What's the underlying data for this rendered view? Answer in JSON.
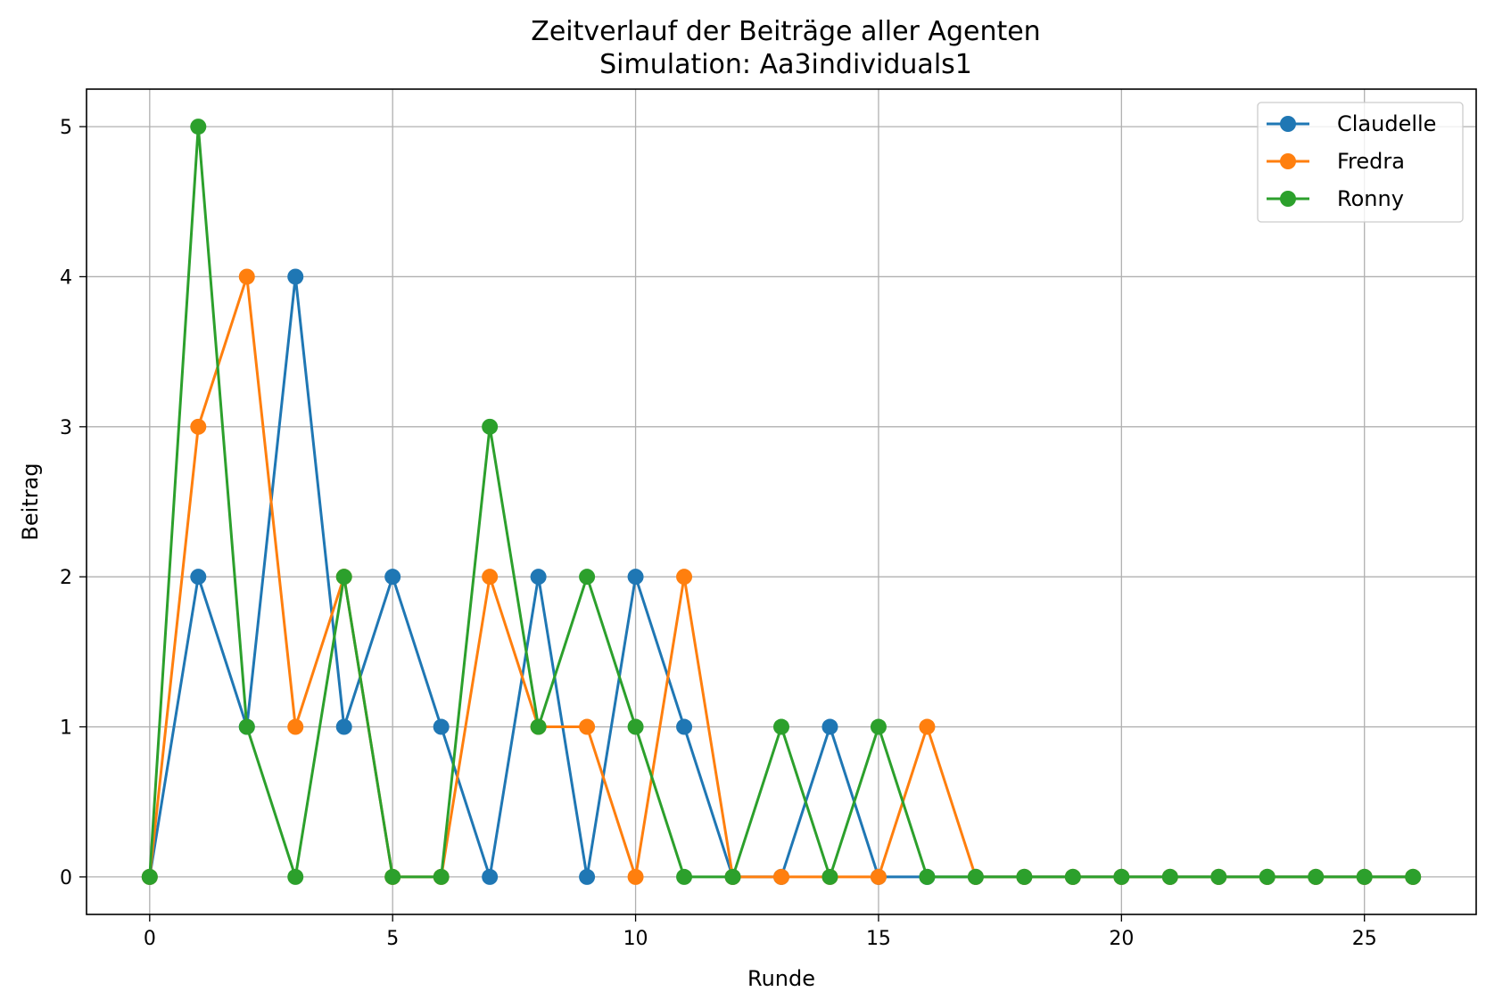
{
  "chart_data": {
    "type": "line",
    "title": "Zeitverlauf der Beiträge aller Agenten",
    "subtitle": "Simulation: Aa3individuals1",
    "xlabel": "Runde",
    "ylabel": "Beitrag",
    "xlim": [
      -1.3,
      27.3
    ],
    "ylim": [
      -0.25,
      5.25
    ],
    "xticks": [
      0,
      5,
      10,
      15,
      20,
      25
    ],
    "yticks": [
      0,
      1,
      2,
      3,
      4,
      5
    ],
    "grid": true,
    "legend_position": "upper right",
    "x": [
      0,
      1,
      2,
      3,
      4,
      5,
      6,
      7,
      8,
      9,
      10,
      11,
      12,
      13,
      14,
      15,
      16,
      17,
      18,
      19,
      20,
      21,
      22,
      23,
      24,
      25,
      26
    ],
    "series": [
      {
        "name": "Claudelle",
        "color": "#1f77b4",
        "values": [
          0,
          2,
          1,
          4,
          1,
          2,
          1,
          0,
          2,
          0,
          2,
          1,
          0,
          0,
          1,
          0,
          0,
          0,
          0,
          0,
          0,
          0,
          0,
          0,
          0,
          0,
          0
        ]
      },
      {
        "name": "Fredra",
        "color": "#ff7f0e",
        "values": [
          0,
          3,
          4,
          1,
          2,
          0,
          0,
          2,
          1,
          1,
          0,
          2,
          0,
          0,
          0,
          0,
          1,
          0,
          0,
          0,
          0,
          0,
          0,
          0,
          0,
          0,
          0
        ]
      },
      {
        "name": "Ronny",
        "color": "#2ca02c",
        "values": [
          0,
          5,
          1,
          0,
          2,
          0,
          0,
          3,
          1,
          2,
          1,
          0,
          0,
          1,
          0,
          1,
          0,
          0,
          0,
          0,
          0,
          0,
          0,
          0,
          0,
          0,
          0
        ]
      }
    ]
  }
}
